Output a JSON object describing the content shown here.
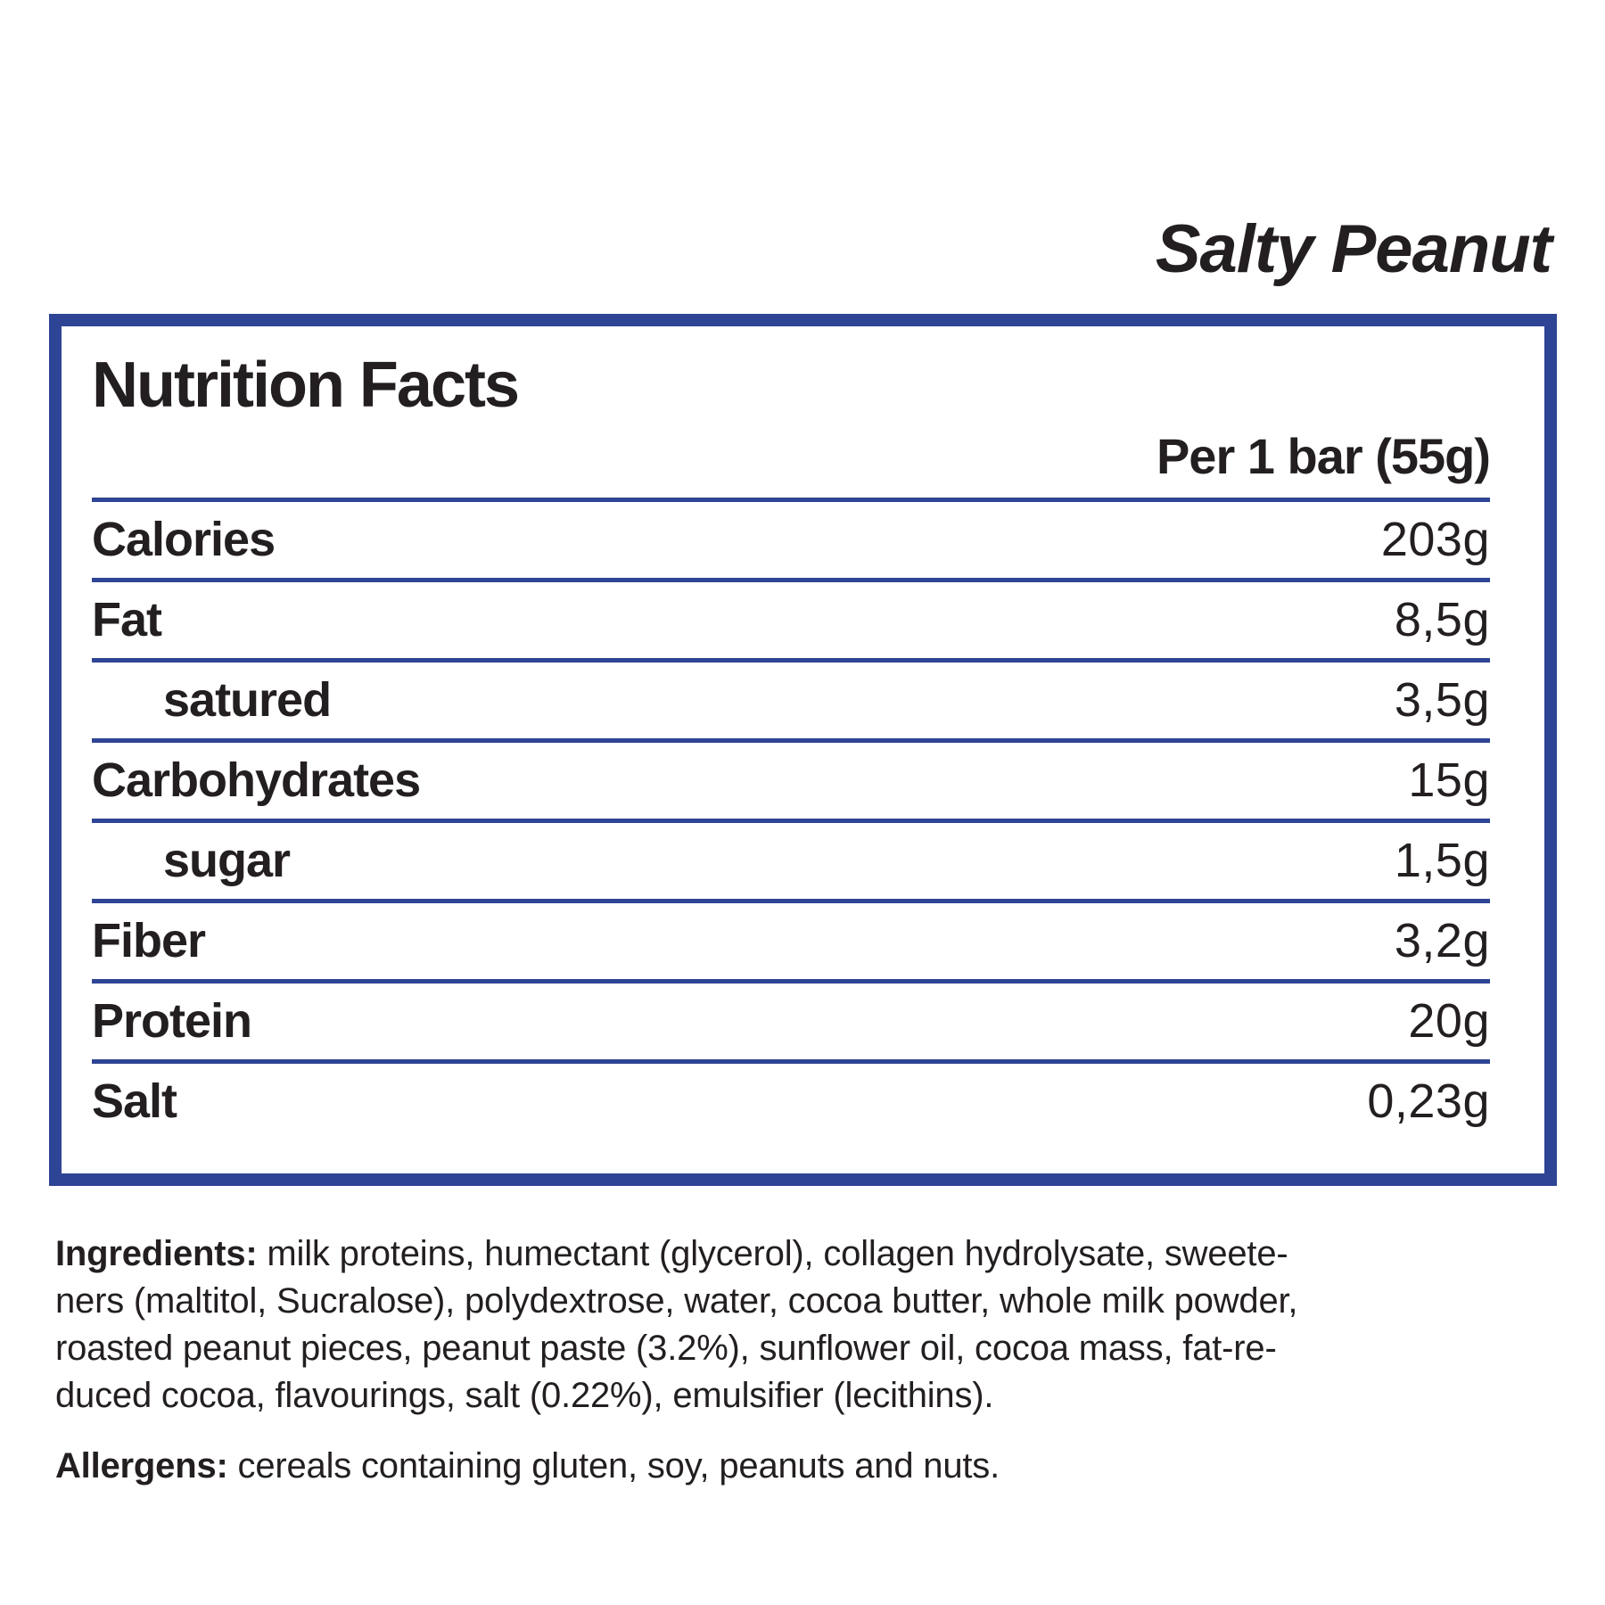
{
  "colors": {
    "accent_blue": "#2e4494",
    "text_dark": "#231f20",
    "background": "#ffffff"
  },
  "title": "Salty Peanut",
  "nutrition_facts": {
    "heading": "Nutrition Facts",
    "serving_header": "Per 1 bar (55g)",
    "rows": [
      {
        "label": "Calories",
        "value": "203g",
        "indent": false
      },
      {
        "label": "Fat",
        "value": "8,5g",
        "indent": false
      },
      {
        "label": "satured",
        "value": "3,5g",
        "indent": true
      },
      {
        "label": "Carbohydrates",
        "value": "15g",
        "indent": false
      },
      {
        "label": "sugar",
        "value": "1,5g",
        "indent": true
      },
      {
        "label": "Fiber",
        "value": "3,2g",
        "indent": false
      },
      {
        "label": "Protein",
        "value": "20g",
        "indent": false
      },
      {
        "label": "Salt",
        "value": "0,23g",
        "indent": false
      }
    ]
  },
  "ingredients": {
    "label": "Ingredients:",
    "text": " milk proteins, humectant (glycerol), collagen hydrolysate, sweete-\nners (maltitol, Sucralose), polydextrose, water, cocoa butter, whole milk powder,\nroasted peanut pieces, peanut paste (3.2%), sunflower oil, cocoa mass, fat-re-\nduced cocoa, flavourings, salt (0.22%), emulsifier (lecithins)."
  },
  "allergens": {
    "label": "Allergens:",
    "text": " cereals containing gluten, soy, peanuts and nuts."
  }
}
